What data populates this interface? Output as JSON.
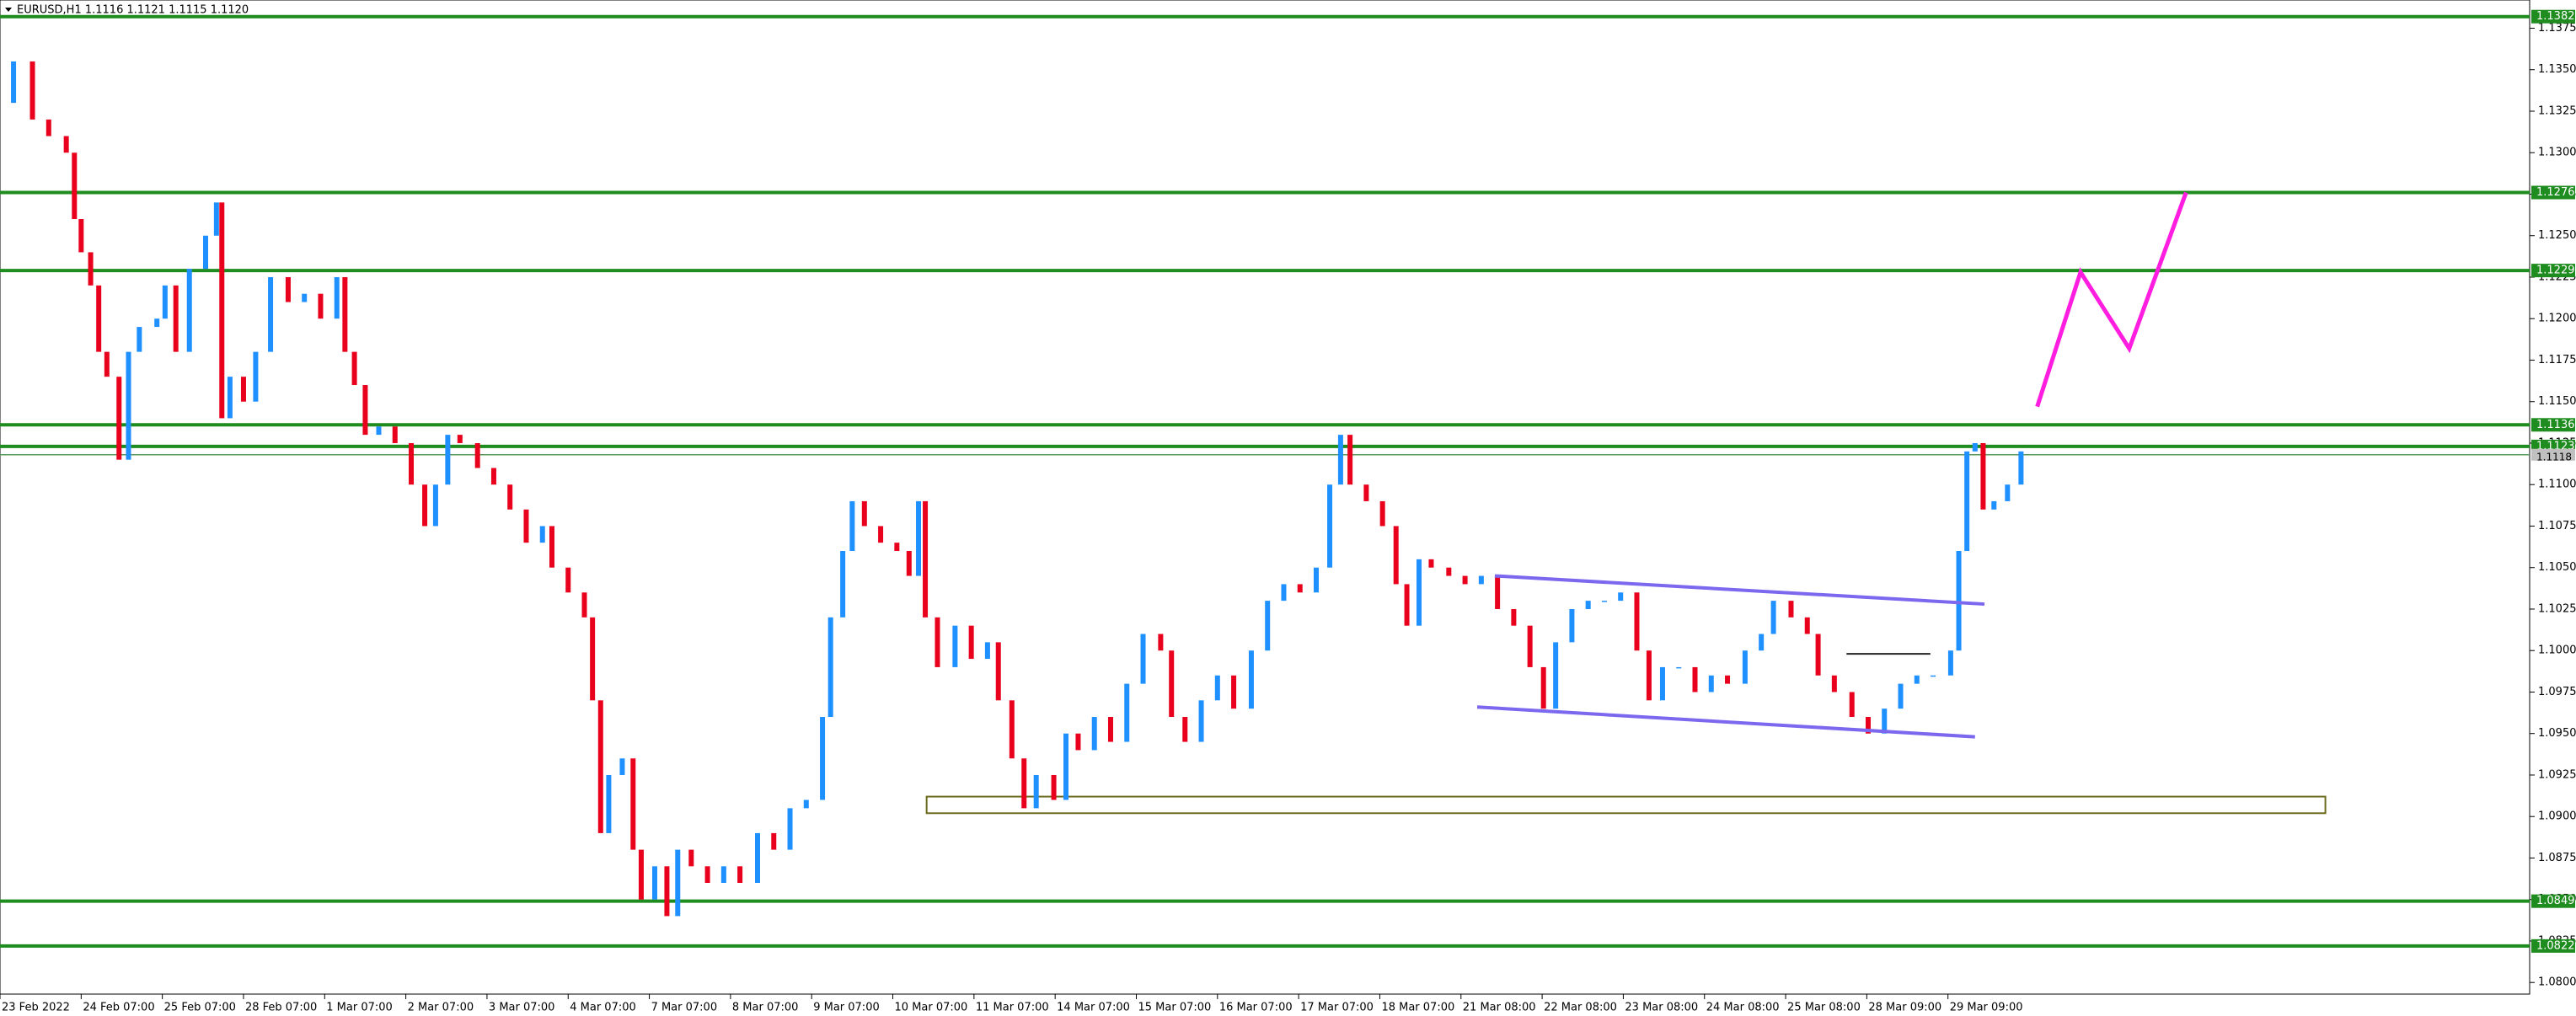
{
  "chart_data": {
    "type": "candles",
    "title": "EURUSD,H1  1.1116 1.1121 1.1115 1.1120",
    "up_color": "#1e90ff",
    "down_color": "#e8001c",
    "x": [
      0,
      1,
      2.4,
      3.6,
      4.9,
      5.5,
      6,
      6.7,
      7.3,
      7.9,
      8.8,
      9.5,
      10.3,
      11.6,
      12.2,
      13,
      14,
      15.2,
      16,
      16.4,
      17,
      18,
      18.9,
      20,
      21.3,
      22.5,
      23.7,
      24.9,
      25.5,
      26.2,
      27,
      28,
      29.2,
      30.4,
      31.4,
      32.2,
      33.1,
      34,
      35.3,
      36.5,
      37.7,
      38.9,
      40.1,
      40.8,
      42,
      43.2,
      43.8,
      44.4,
      45,
      46,
      46.8,
      47.4,
      48.4,
      49.3,
      50.1,
      51.1,
      52.3,
      53.5,
      54.7,
      56,
      57.2,
      58.4,
      59.6,
      60.8,
      61.4,
      62.3,
      63,
      63.9,
      65.1,
      66.3,
      67.2,
      67.9,
      68.4,
      69.3,
      70.6,
      71.8,
      73,
      73.8,
      74.8,
      75.7,
      76.6,
      77.9,
      78.8,
      79.7,
      80.9,
      82.1,
      83.3,
      84.5,
      85.8,
      86.6,
      87.6,
      88.8,
      90,
      91.2,
      92.5,
      93.7,
      94.9,
      96.1,
      97.3,
      98.3,
      99.1,
      99.8,
      101,
      102.2,
      103.2,
      104,
      104.9,
      105.8,
      107.1,
      108.3,
      109.5,
      110.7,
      111.9,
      113.1,
      114.1,
      115,
      116.2,
      117.4,
      118.6,
      119.8,
      121,
      121.9,
      122.9,
      124.1,
      125.3,
      126.5,
      127.7,
      129,
      130.2,
      131.1,
      132.4,
      133.6,
      134.4,
      135.6,
      136.9,
      138.1,
      139.3,
      140.5,
      141.7,
      142.9,
      144.2,
      144.8,
      145.4,
      146,
      146.6,
      147.4,
      148.4,
      149.4
    ],
    "values": [
      1.133,
      1.1355,
      1.132,
      1.131,
      1.13,
      1.126,
      1.124,
      1.122,
      1.118,
      1.1165,
      1.1115,
      1.118,
      1.1195,
      1.12,
      1.122,
      1.118,
      1.123,
      1.125,
      1.127,
      1.114,
      1.1165,
      1.115,
      1.118,
      1.1225,
      1.121,
      1.1215,
      1.12,
      1.1225,
      1.118,
      1.116,
      1.113,
      1.1135,
      1.1125,
      1.11,
      1.1075,
      1.11,
      1.113,
      1.1125,
      1.111,
      1.11,
      1.1085,
      1.1065,
      1.1075,
      1.105,
      1.1035,
      1.102,
      1.097,
      1.089,
      1.0925,
      1.0935,
      1.088,
      1.085,
      1.087,
      1.084,
      1.088,
      1.087,
      1.086,
      1.087,
      1.086,
      1.089,
      1.088,
      1.0905,
      1.091,
      1.096,
      1.102,
      1.106,
      1.109,
      1.1075,
      1.1065,
      1.106,
      1.1045,
      1.109,
      1.102,
      1.099,
      1.1015,
      1.0995,
      1.1005,
      1.097,
      1.0935,
      1.0905,
      1.0925,
      1.091,
      1.095,
      1.094,
      1.096,
      1.0945,
      1.098,
      1.101,
      1.1,
      1.096,
      1.0945,
      1.097,
      1.0985,
      1.0965,
      1.1,
      1.103,
      1.104,
      1.1035,
      1.105,
      1.11,
      1.113,
      1.11,
      1.109,
      1.1075,
      1.104,
      1.1015,
      1.1055,
      1.105,
      1.1045,
      1.104,
      1.1045,
      1.1025,
      1.1015,
      1.099,
      1.0965,
      1.1005,
      1.1025,
      1.103,
      1.103,
      1.1035,
      1.1,
      1.097,
      1.099,
      1.099,
      1.0975,
      1.0985,
      1.098,
      1.1,
      1.101,
      1.103,
      1.102,
      1.101,
      1.0985,
      1.0975,
      1.096,
      1.095,
      1.0965,
      1.098,
      1.0985,
      1.0985,
      1.1,
      1.106,
      1.112,
      1.1125,
      1.1085,
      1.109,
      1.11,
      1.112
    ],
    "xlim": [
      0,
      187
    ],
    "ylim": [
      1.0793,
      1.1392
    ],
    "xticks": [
      {
        "value": 0,
        "label": "23 Feb 2022"
      },
      {
        "value": 6,
        "label": "24 Feb 07:00"
      },
      {
        "value": 12,
        "label": "25 Feb 07:00"
      },
      {
        "value": 18,
        "label": "28 Feb 07:00"
      },
      {
        "value": 24,
        "label": "1 Mar 07:00"
      },
      {
        "value": 30,
        "label": "2 Mar 07:00"
      },
      {
        "value": 36,
        "label": "3 Mar 07:00"
      },
      {
        "value": 42,
        "label": "4 Mar 07:00"
      },
      {
        "value": 48,
        "label": "7 Mar 07:00"
      },
      {
        "value": 54,
        "label": "8 Mar 07:00"
      },
      {
        "value": 60,
        "label": "9 Mar 07:00"
      },
      {
        "value": 66,
        "label": "10 Mar 07:00"
      },
      {
        "value": 72,
        "label": "11 Mar 07:00"
      },
      {
        "value": 78,
        "label": "14 Mar 07:00"
      },
      {
        "value": 84,
        "label": "15 Mar 07:00"
      },
      {
        "value": 90,
        "label": "16 Mar 07:00"
      },
      {
        "value": 96,
        "label": "17 Mar 07:00"
      },
      {
        "value": 102,
        "label": "18 Mar 07:00"
      },
      {
        "value": 108,
        "label": "21 Mar 08:00"
      },
      {
        "value": 114,
        "label": "22 Mar 08:00"
      },
      {
        "value": 120,
        "label": "23 Mar 08:00"
      },
      {
        "value": 126,
        "label": "24 Mar 08:00"
      },
      {
        "value": 132,
        "label": "25 Mar 08:00"
      },
      {
        "value": 138,
        "label": "28 Mar 09:00"
      },
      {
        "value": 144,
        "label": "29 Mar 09:00"
      }
    ],
    "yticks": [
      1.1375,
      {
        "value": 1.135,
        "label": "1.1350"
      },
      1.1325,
      {
        "value": 1.13,
        "label": "1.1300"
      },
      1.1275,
      {
        "value": 1.125,
        "label": "1.1250"
      },
      1.1225,
      {
        "value": 1.12,
        "label": "1.1200"
      },
      1.1175,
      {
        "value": 1.115,
        "label": "1.1150"
      },
      1.1125,
      {
        "value": 1.11,
        "label": "1.1100"
      },
      1.1075,
      {
        "value": 1.105,
        "label": "1.1050"
      },
      1.1025,
      {
        "value": 1.1,
        "label": "1.1000"
      },
      1.0975,
      {
        "value": 1.095,
        "label": "1.0950"
      },
      1.0925,
      {
        "value": 1.09,
        "label": "1.0900"
      },
      1.0875,
      {
        "value": 1.085,
        "label": "1.0850"
      },
      1.0825,
      {
        "value": 1.08,
        "label": "1.0800"
      }
    ],
    "levels": [
      1.1382,
      1.1276,
      1.1229,
      1.1136,
      1.1123,
      1.0849,
      1.0822
    ],
    "level_color": "#1e8c1e",
    "price_line": 1.1118,
    "channel": {
      "color": "#7b68ee",
      "lines": [
        {
          "x": [
            110.5,
            146.7
          ],
          "y": [
            1.1045,
            1.1028
          ]
        },
        {
          "x": [
            109.2,
            146
          ],
          "y": [
            1.0966,
            1.0948
          ]
        }
      ]
    },
    "zone": {
      "color": "#6b6b1e",
      "x": [
        68.5,
        171.9
      ],
      "y": [
        1.0902,
        1.0912
      ]
    },
    "marker": {
      "color": "#222222",
      "x": [
        136.5,
        142.7
      ],
      "y": [
        1.0998,
        1.0998
      ]
    },
    "projection": {
      "color": "#ff1ee0",
      "x": [
        150.6,
        153.8,
        157.4,
        161.6
      ],
      "y": [
        1.1147,
        1.1228,
        1.1182,
        1.1276
      ]
    }
  }
}
